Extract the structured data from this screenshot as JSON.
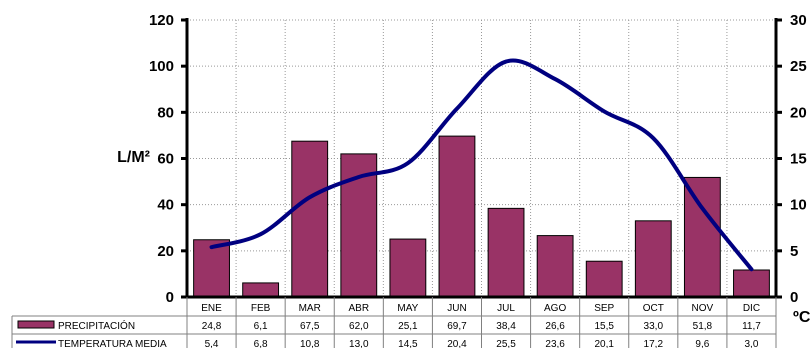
{
  "chart_data": {
    "type": "bar",
    "categories": [
      "ENE",
      "FEB",
      "MAR",
      "ABR",
      "MAY",
      "JUN",
      "JUL",
      "AGO",
      "SEP",
      "OCT",
      "NOV",
      "DIC"
    ],
    "ylabel": "L/M²",
    "y2label": "ºC",
    "ylim": [
      0,
      120
    ],
    "y2lim": [
      0,
      30
    ],
    "yticks": [
      "0",
      "20",
      "40",
      "60",
      "80",
      "100",
      "120"
    ],
    "y2ticks": [
      "0",
      "5",
      "10",
      "15",
      "20",
      "25",
      "30"
    ],
    "grid": true,
    "legend": "table-below",
    "series": [
      {
        "name": "PRECIPITACIÓN",
        "type": "bar",
        "axis": "left",
        "color": "#993366",
        "values": [
          24.8,
          6.1,
          67.5,
          62.0,
          25.1,
          69.7,
          38.4,
          26.6,
          15.5,
          33.0,
          51.8,
          11.7
        ],
        "labels": [
          "24,8",
          "6,1",
          "67,5",
          "62,0",
          "25,1",
          "69,7",
          "38,4",
          "26,6",
          "15,5",
          "33,0",
          "51,8",
          "11,7"
        ]
      },
      {
        "name": "TEMPERATURA MEDIA",
        "type": "line",
        "axis": "right",
        "color": "#000080",
        "values": [
          5.4,
          6.8,
          10.8,
          13.0,
          14.5,
          20.4,
          25.5,
          23.6,
          20.1,
          17.2,
          9.6,
          3.0
        ],
        "labels": [
          "5,4",
          "6,8",
          "10,8",
          "13,0",
          "14,5",
          "20,4",
          "25,5",
          "23,6",
          "20,1",
          "17,2",
          "9,6",
          "3,0"
        ]
      }
    ]
  }
}
